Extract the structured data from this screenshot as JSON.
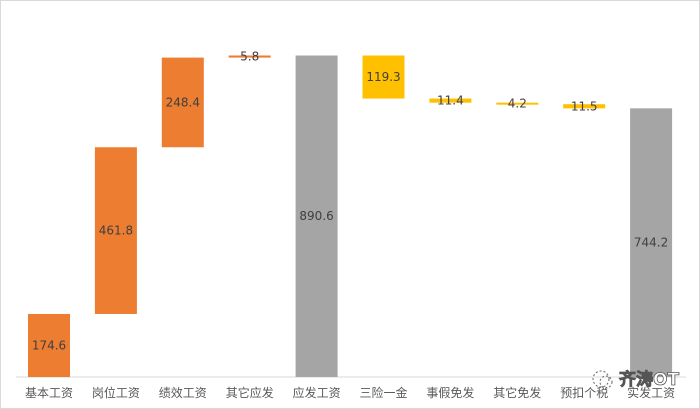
{
  "chart_data": {
    "type": "waterfall",
    "categories": [
      "基本工资",
      "岗位工资",
      "绩效工资",
      "其它应发",
      "应发工资",
      "三险一金",
      "事假免发",
      "其它免发",
      "预扣个税",
      "实发工资"
    ],
    "values": [
      174.6,
      461.8,
      248.4,
      5.8,
      890.6,
      -119.3,
      -11.4,
      -4.2,
      -11.5,
      744.2
    ],
    "labels": [
      "174.6",
      "461.8",
      "248.4",
      "5.8",
      "890.6",
      "119.3",
      "11.4",
      "4.2",
      "11.5",
      "744.2"
    ],
    "kinds": [
      "increase",
      "increase",
      "increase",
      "increase",
      "total",
      "decrease",
      "decrease",
      "decrease",
      "decrease",
      "total"
    ],
    "colors": {
      "increase": "#ED7D31",
      "total": "#A5A5A5",
      "decrease": "#FFC000"
    },
    "ylim": [
      0,
      1000
    ],
    "grid": false,
    "legend": "none",
    "title": "",
    "xlabel": "",
    "ylabel": ""
  },
  "watermark": {
    "text": "齐涛OT",
    "icon": "wechat-icon"
  }
}
